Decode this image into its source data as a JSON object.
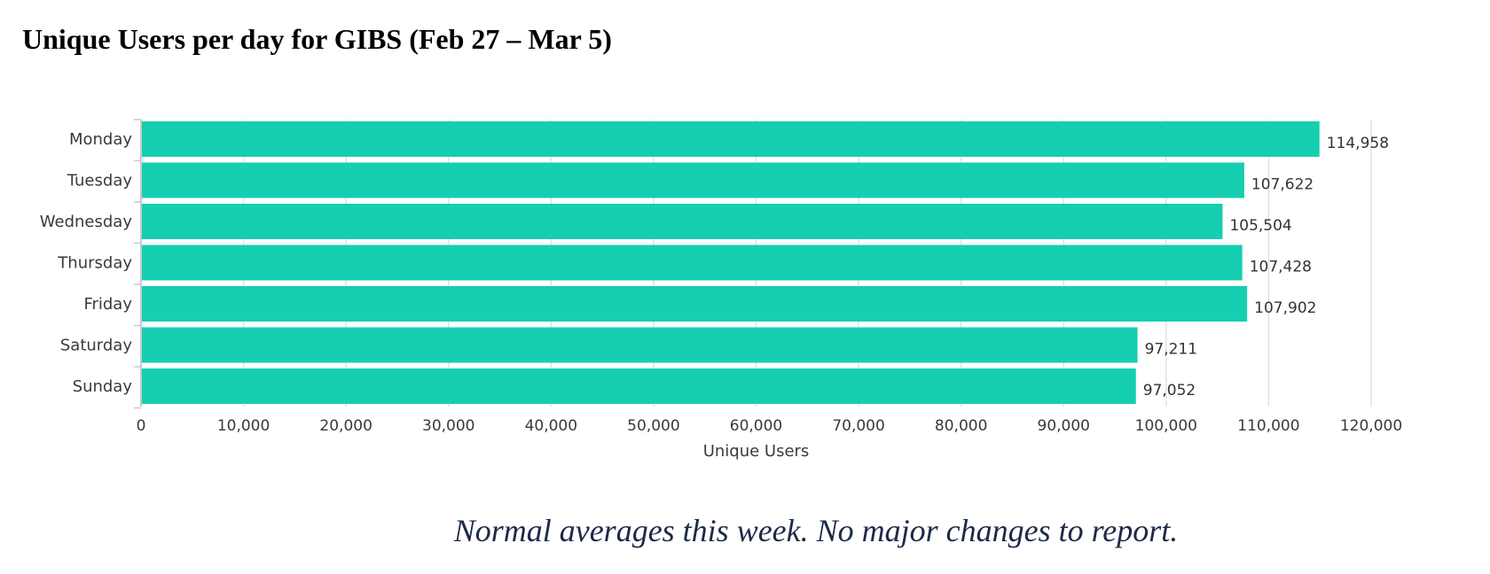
{
  "title": "Unique Users per day for GIBS (Feb 27 – Mar 5)",
  "caption": "Normal averages this week.  No major changes to report.",
  "colors": {
    "bar": "#16cfb0",
    "grid": "#e2e2e2",
    "axis": "#c8c8c8"
  },
  "chart_data": {
    "type": "bar",
    "orientation": "horizontal",
    "title": "",
    "xlabel": "Unique Users",
    "ylabel": "",
    "categories": [
      "Monday",
      "Tuesday",
      "Wednesday",
      "Thursday",
      "Friday",
      "Saturday",
      "Sunday"
    ],
    "values": [
      114958,
      107622,
      105504,
      107428,
      107902,
      97211,
      97052
    ],
    "value_labels": [
      "114,958",
      "107,622",
      "105,504",
      "107,428",
      "107,902",
      "97,211",
      "97,052"
    ],
    "xlim": [
      0,
      120000
    ],
    "ticks": [
      0,
      10000,
      20000,
      30000,
      40000,
      50000,
      60000,
      70000,
      80000,
      90000,
      100000,
      110000,
      120000
    ],
    "tick_labels": [
      "0",
      "10,000",
      "20,000",
      "30,000",
      "40,000",
      "50,000",
      "60,000",
      "70,000",
      "80,000",
      "90,000",
      "100,000",
      "110,000",
      "120,000"
    ],
    "grid": true,
    "legend": "none"
  }
}
